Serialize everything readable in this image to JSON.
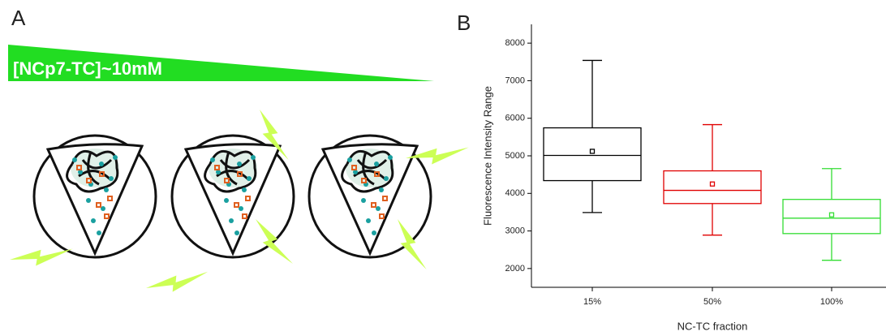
{
  "panels": {
    "a": {
      "label": "A",
      "concentration": "[NCp7-TC]~10mM"
    },
    "b": {
      "label": "B"
    }
  },
  "chart_data": {
    "type": "box",
    "xlabel": "NC-TC fraction",
    "ylabel": "Fluorescence Intensity Range",
    "categories": [
      "15%",
      "50%",
      "100%"
    ],
    "colors": [
      "#000000",
      "#e00000",
      "#33dd33"
    ],
    "whisker_low": [
      3490,
      2890,
      2220
    ],
    "q1": [
      4340,
      3730,
      2930
    ],
    "median": [
      5010,
      4080,
      3340
    ],
    "q3": [
      5745,
      4600,
      3840
    ],
    "whisker_high": [
      7540,
      5830,
      4660
    ],
    "mean": [
      5120,
      4250,
      3430
    ],
    "ylim": [
      1500,
      8500
    ],
    "yticks": [
      2000,
      3000,
      4000,
      5000,
      6000,
      7000,
      8000
    ]
  }
}
